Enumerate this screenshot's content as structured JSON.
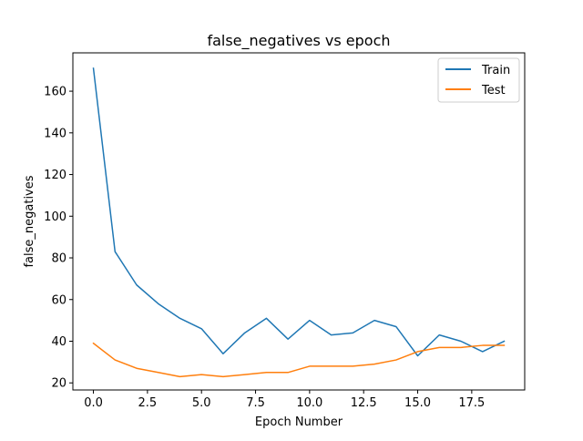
{
  "chart_data": {
    "type": "line",
    "title": "false_negatives vs epoch",
    "xlabel": "Epoch Number",
    "ylabel": "false_negatives",
    "x": [
      0,
      1,
      2,
      3,
      4,
      5,
      6,
      7,
      8,
      9,
      10,
      11,
      12,
      13,
      14,
      15,
      16,
      17,
      18,
      19
    ],
    "xlim": [
      -0.95,
      19.95
    ],
    "ylim": [
      16.6,
      178.4
    ],
    "xticks": [
      0,
      2.5,
      5,
      7.5,
      10,
      12.5,
      15,
      17.5
    ],
    "xtick_labels": [
      "0.0",
      "2.5",
      "5.0",
      "7.5",
      "10.0",
      "12.5",
      "15.0",
      "17.5"
    ],
    "yticks": [
      20,
      40,
      60,
      80,
      100,
      120,
      140,
      160
    ],
    "ytick_labels": [
      "20",
      "40",
      "60",
      "80",
      "100",
      "120",
      "140",
      "160"
    ],
    "grid": false,
    "legend_position": "top-right",
    "series": [
      {
        "name": "Train",
        "color": "#1f77b4",
        "values": [
          171,
          83,
          67,
          58,
          51,
          46,
          34,
          44,
          51,
          41,
          50,
          43,
          44,
          50,
          47,
          33,
          43,
          40,
          35,
          40
        ]
      },
      {
        "name": "Test",
        "color": "#ff7f0e",
        "values": [
          39,
          31,
          27,
          25,
          23,
          24,
          23,
          24,
          25,
          25,
          28,
          28,
          28,
          29,
          31,
          35,
          37,
          37,
          38,
          38
        ]
      }
    ]
  }
}
